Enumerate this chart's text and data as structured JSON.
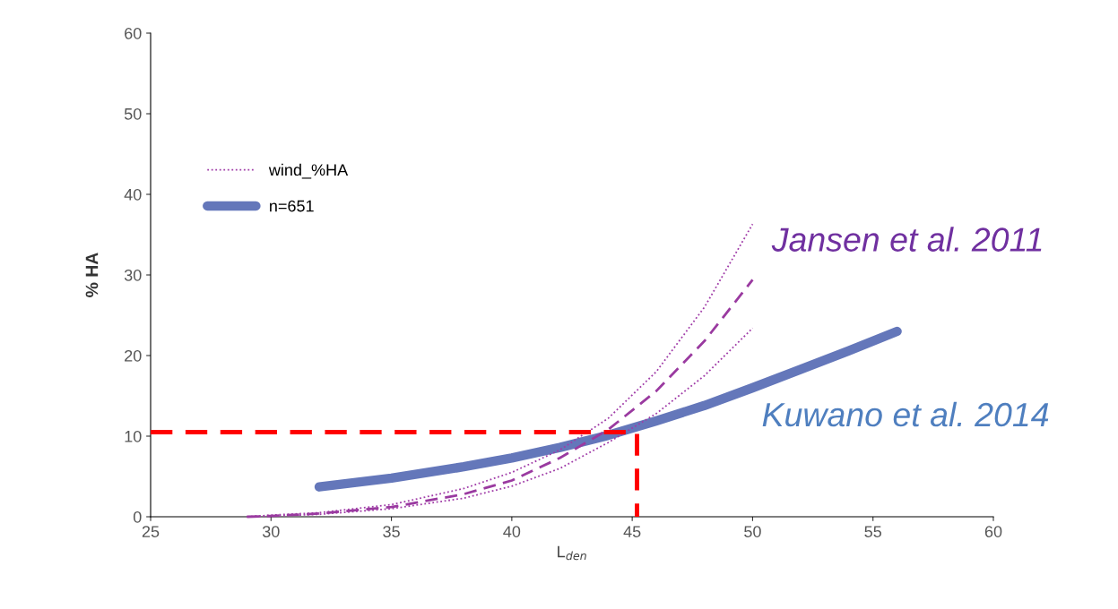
{
  "chart_data": {
    "type": "line",
    "xlabel": "L$_{den}$",
    "ylabel": "% HA",
    "xlim": [
      25,
      60
    ],
    "xticks": [
      25,
      30,
      35,
      40,
      45,
      50,
      55,
      60
    ],
    "ylim": [
      0,
      60
    ],
    "yticks": [
      0,
      10,
      20,
      30,
      40,
      50,
      60
    ],
    "grid": false,
    "legend": "top left",
    "marker": "none",
    "series": [
      {
        "name": "wind_%HA",
        "color": "#a03ca8",
        "line_style": "dotted",
        "x": [
          29,
          30,
          32,
          35,
          38,
          40,
          42,
          44,
          46,
          48,
          50
        ],
        "values": [
          0,
          0.1,
          0.3,
          1.0,
          2.3,
          3.8,
          6,
          9.2,
          12.8,
          17.5,
          23.4
        ]
      },
      {
        "color": "#a03ca8",
        "line_style": "dotted",
        "x": [
          29,
          30,
          32,
          35,
          38,
          40,
          42,
          44,
          46,
          48,
          50
        ],
        "values": [
          0,
          0.2,
          0.5,
          1.5,
          3.5,
          5.5,
          8.3,
          12.2,
          18,
          26,
          36.3
        ]
      },
      {
        "color": "#9a3aa0",
        "line_style": "dashed",
        "x": [
          29,
          30,
          32,
          35,
          38,
          40,
          42,
          44,
          46,
          48,
          50
        ],
        "values": [
          0,
          0.1,
          0.4,
          1.2,
          2.8,
          4.5,
          7.3,
          10.8,
          15.6,
          21.8,
          29.4
        ]
      },
      {
        "name": "n=651",
        "color": "#6477ba",
        "line_style": "solid",
        "x": [
          32,
          35,
          38,
          40,
          42,
          44,
          46,
          48,
          50,
          52,
          54,
          56
        ],
        "values": [
          3.7,
          4.8,
          6.2,
          7.3,
          8.6,
          10.1,
          11.9,
          13.8,
          16,
          18.3,
          20.6,
          23
        ]
      },
      {
        "color": "#ff0000",
        "line_style": "dashed",
        "x": [
          25,
          45.2,
          45.2
        ],
        "values": [
          10.5,
          10.5,
          0
        ]
      }
    ],
    "annotations": [
      "Jansen et al. 2011",
      "Kuwano et al. 2014"
    ]
  }
}
